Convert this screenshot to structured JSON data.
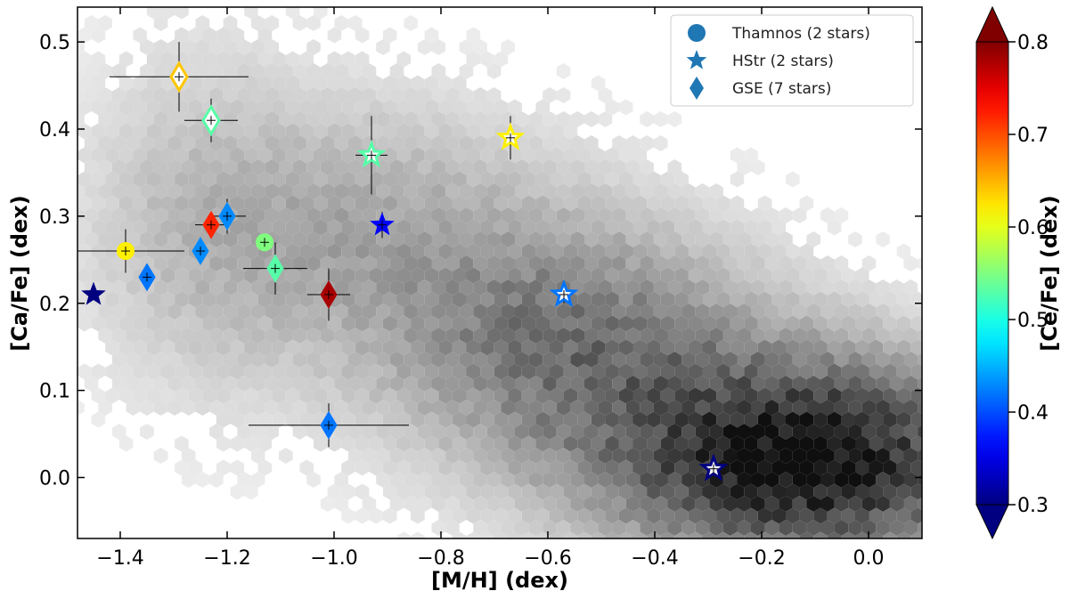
{
  "chart_data": {
    "type": "scatter",
    "xlabel": "[M/H] (dex)",
    "ylabel": "[Ca/Fe] (dex)",
    "colorbar_label": "[Ce/Fe] (dex)",
    "xlim": [
      -1.48,
      0.1
    ],
    "ylim": [
      -0.07,
      0.54
    ],
    "x_ticks": [
      -1.4,
      -1.2,
      -1.0,
      -0.8,
      -0.6,
      -0.4,
      -0.2,
      0.0
    ],
    "x_tick_labels": [
      "−1.4",
      "−1.2",
      "−1.0",
      "−0.8",
      "−0.6",
      "−0.4",
      "−0.2",
      "0.0"
    ],
    "y_ticks": [
      0.0,
      0.1,
      0.2,
      0.3,
      0.4,
      0.5
    ],
    "y_tick_labels": [
      "0.0",
      "0.1",
      "0.2",
      "0.3",
      "0.4",
      "0.5"
    ],
    "colorbar_range": [
      0.3,
      0.8
    ],
    "colorbar_ticks": [
      0.3,
      0.4,
      0.5,
      0.6,
      0.7,
      0.8
    ],
    "colorbar_tick_labels": [
      "0.3",
      "0.4",
      "0.5",
      "0.6",
      "0.7",
      "0.8"
    ],
    "colormap": "jet",
    "grid": false,
    "background": "grayscale hexbin density of field stars, densest near [M/H] -0.3 to 0.0, [Ca/Fe] 0.0 to 0.1",
    "legend_position": "top-right",
    "legend_color": "#1f77b4",
    "legend": [
      {
        "marker": "circle",
        "label": "Thamnos (2 stars)"
      },
      {
        "marker": "star",
        "label": "HStr (2 stars)"
      },
      {
        "marker": "diamond",
        "label": "GSE (7 stars)"
      }
    ],
    "series": [
      {
        "name": "Thamnos (2 stars)",
        "marker": "circle",
        "points": [
          {
            "x": -1.39,
            "y": 0.26,
            "xerr": 0.11,
            "yerr": 0.025,
            "ce": 0.62,
            "filled": true
          },
          {
            "x": -1.13,
            "y": 0.27,
            "xerr": 0.01,
            "yerr": 0.005,
            "ce": 0.55,
            "filled": true
          }
        ]
      },
      {
        "name": "HStr (2 stars)",
        "marker": "star",
        "points": [
          {
            "x": -1.45,
            "y": 0.21,
            "xerr": 0.0,
            "yerr": 0.0,
            "ce": 0.3,
            "filled": true
          },
          {
            "x": -0.93,
            "y": 0.37,
            "xerr": 0.03,
            "yerr": 0.045,
            "ce": 0.53,
            "filled": false
          },
          {
            "x": -0.91,
            "y": 0.29,
            "xerr": 0.01,
            "yerr": 0.015,
            "ce": 0.36,
            "filled": true
          },
          {
            "x": -0.67,
            "y": 0.39,
            "xerr": 0.01,
            "yerr": 0.025,
            "ce": 0.62,
            "filled": false
          },
          {
            "x": -0.57,
            "y": 0.21,
            "xerr": 0.01,
            "yerr": 0.01,
            "ce": 0.42,
            "filled": false
          },
          {
            "x": -0.29,
            "y": 0.01,
            "xerr": 0.01,
            "yerr": 0.008,
            "ce": 0.3,
            "filled": false
          }
        ]
      },
      {
        "name": "GSE (7 stars)",
        "marker": "diamond",
        "points": [
          {
            "x": -1.29,
            "y": 0.46,
            "xerr": 0.13,
            "yerr": 0.04,
            "ce": 0.64,
            "filled": false
          },
          {
            "x": -1.23,
            "y": 0.41,
            "xerr": 0.05,
            "yerr": 0.025,
            "ce": 0.53,
            "filled": false
          },
          {
            "x": -1.23,
            "y": 0.29,
            "xerr": 0.03,
            "yerr": 0.015,
            "ce": 0.72,
            "filled": true
          },
          {
            "x": -1.2,
            "y": 0.3,
            "xerr": 0.035,
            "yerr": 0.02,
            "ce": 0.43,
            "filled": true
          },
          {
            "x": -1.25,
            "y": 0.26,
            "xerr": 0.01,
            "yerr": 0.015,
            "ce": 0.43,
            "filled": true
          },
          {
            "x": -1.35,
            "y": 0.23,
            "xerr": 0.01,
            "yerr": 0.015,
            "ce": 0.42,
            "filled": true
          },
          {
            "x": -1.11,
            "y": 0.24,
            "xerr": 0.06,
            "yerr": 0.03,
            "ce": 0.53,
            "filled": true
          },
          {
            "x": -1.01,
            "y": 0.21,
            "xerr": 0.04,
            "yerr": 0.03,
            "ce": 0.78,
            "filled": true
          },
          {
            "x": -1.01,
            "y": 0.06,
            "xerr": 0.15,
            "yerr": 0.025,
            "ce": 0.42,
            "filled": true
          }
        ]
      }
    ]
  }
}
